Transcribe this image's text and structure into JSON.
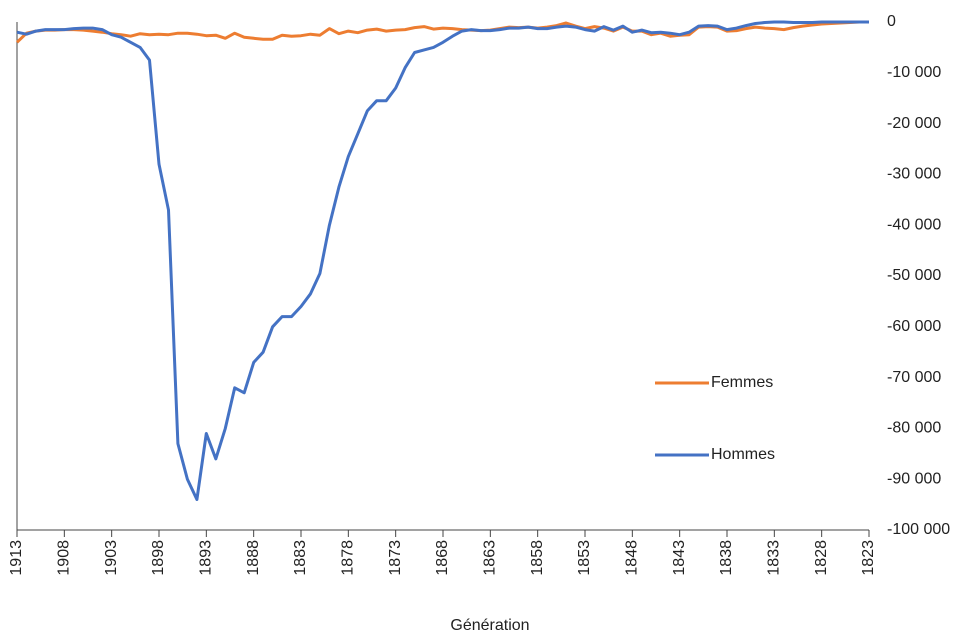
{
  "chart_data": {
    "type": "line",
    "x_label": "Génération",
    "x": [
      1913,
      1912,
      1911,
      1910,
      1909,
      1908,
      1907,
      1906,
      1905,
      1904,
      1903,
      1902,
      1901,
      1900,
      1899,
      1898,
      1897,
      1896,
      1895,
      1894,
      1893,
      1892,
      1891,
      1890,
      1889,
      1888,
      1887,
      1886,
      1885,
      1884,
      1883,
      1882,
      1881,
      1880,
      1879,
      1878,
      1877,
      1876,
      1875,
      1874,
      1873,
      1872,
      1871,
      1870,
      1869,
      1868,
      1867,
      1866,
      1865,
      1864,
      1863,
      1862,
      1861,
      1860,
      1859,
      1858,
      1857,
      1856,
      1855,
      1854,
      1853,
      1852,
      1851,
      1850,
      1849,
      1848,
      1847,
      1846,
      1845,
      1844,
      1843,
      1842,
      1841,
      1840,
      1839,
      1838,
      1837,
      1836,
      1835,
      1834,
      1833,
      1832,
      1831,
      1830,
      1829,
      1828,
      1827,
      1826,
      1825,
      1824,
      1823
    ],
    "series": [
      {
        "name": "Femmes",
        "color": "#ed7d31",
        "values": [
          -4000,
          -2200,
          -1800,
          -1600,
          -1600,
          -1500,
          -1500,
          -1600,
          -1800,
          -2000,
          -2300,
          -2500,
          -2800,
          -2300,
          -2500,
          -2400,
          -2500,
          -2200,
          -2200,
          -2400,
          -2700,
          -2600,
          -3200,
          -2200,
          -3000,
          -3200,
          -3400,
          -3400,
          -2600,
          -2800,
          -2700,
          -2400,
          -2600,
          -1300,
          -2300,
          -1800,
          -2100,
          -1600,
          -1400,
          -1800,
          -1600,
          -1500,
          -1100,
          -900,
          -1400,
          -1200,
          -1300,
          -1500,
          -1600,
          -1700,
          -1600,
          -1300,
          -1000,
          -1100,
          -1000,
          -1200,
          -1000,
          -700,
          -200,
          -800,
          -1300,
          -900,
          -1200,
          -1800,
          -1000,
          -1800,
          -1800,
          -2500,
          -2200,
          -2800,
          -2600,
          -2500,
          -1000,
          -900,
          -1000,
          -1800,
          -1700,
          -1300,
          -1000,
          -1200,
          -1300,
          -1500,
          -1100,
          -800,
          -600,
          -400,
          -300,
          -200,
          -100,
          0,
          0
        ]
      },
      {
        "name": "Hommes",
        "color": "#4472c4",
        "values": [
          -2000,
          -2400,
          -1800,
          -1500,
          -1500,
          -1500,
          -1300,
          -1200,
          -1200,
          -1500,
          -2500,
          -3000,
          -4000,
          -5000,
          -7500,
          -28000,
          -37000,
          -83000,
          -90000,
          -94000,
          -81000,
          -86000,
          -80000,
          -72000,
          -73000,
          -67000,
          -65000,
          -60000,
          -58000,
          -58000,
          -56000,
          -53500,
          -49500,
          -40000,
          -32500,
          -26500,
          -22000,
          -17500,
          -15500,
          -15500,
          -13000,
          -9000,
          -6000,
          -5500,
          -5000,
          -4000,
          -2800,
          -1800,
          -1500,
          -1700,
          -1700,
          -1500,
          -1200,
          -1200,
          -1000,
          -1300,
          -1300,
          -1000,
          -800,
          -1000,
          -1500,
          -1800,
          -900,
          -1600,
          -800,
          -2000,
          -1600,
          -2100,
          -2000,
          -2200,
          -2500,
          -2000,
          -800,
          -700,
          -800,
          -1500,
          -1200,
          -700,
          -300,
          -100,
          0,
          0,
          -100,
          -100,
          -100,
          0,
          0,
          0,
          0,
          0,
          0
        ]
      }
    ],
    "xlim": [
      1913,
      1823
    ],
    "xticks": [
      1913,
      1908,
      1903,
      1898,
      1893,
      1888,
      1883,
      1878,
      1873,
      1868,
      1863,
      1858,
      1853,
      1848,
      1843,
      1838,
      1833,
      1828,
      1823
    ],
    "ylim": [
      -100000,
      0
    ],
    "yticks": [
      0,
      {
        "value": -10000,
        "label": "-10 000"
      },
      {
        "value": -20000,
        "label": "-20 000"
      },
      {
        "value": -30000,
        "label": "-30 000"
      },
      {
        "value": -40000,
        "label": "-40 000"
      },
      {
        "value": -50000,
        "label": "-50 000"
      },
      {
        "value": -60000,
        "label": "-60 000"
      },
      {
        "value": -70000,
        "label": "-70 000"
      },
      {
        "value": -80000,
        "label": "-80 000"
      },
      {
        "value": -90000,
        "label": "-90 000"
      },
      {
        "value": -100000,
        "label": "-100 000"
      }
    ],
    "y_axis_side": "right",
    "legend": "lower right"
  }
}
